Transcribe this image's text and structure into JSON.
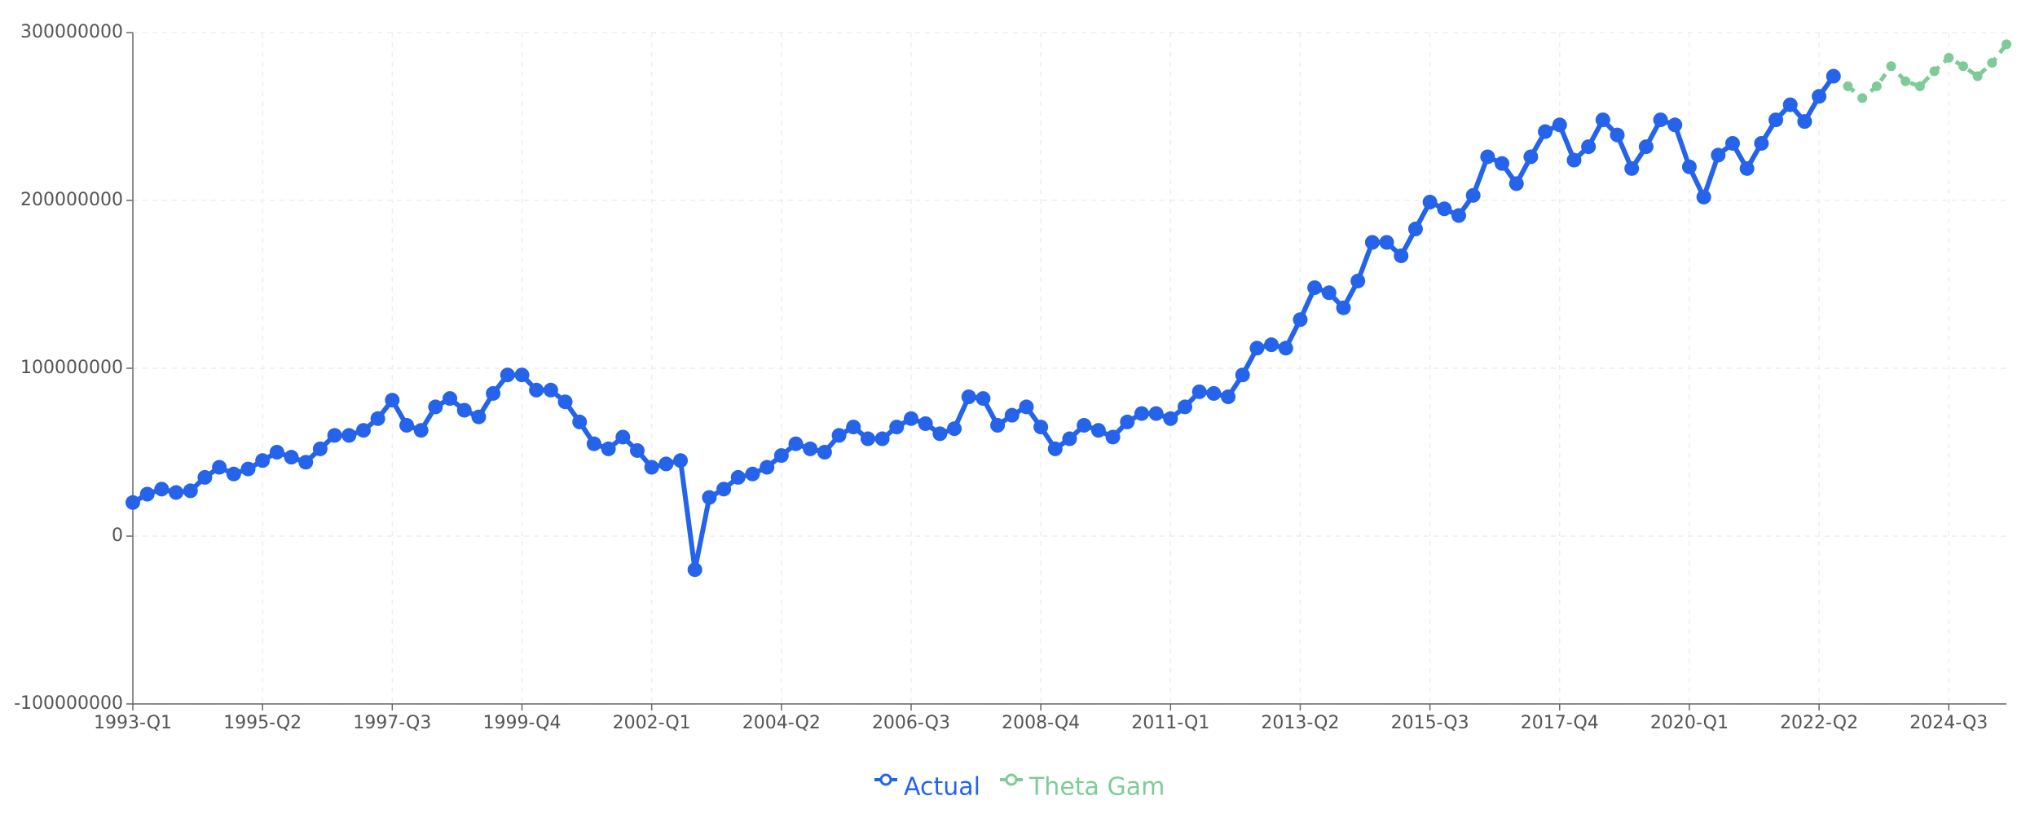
{
  "chart_data": {
    "type": "line",
    "categories": [
      "1993-Q1",
      null,
      null,
      null,
      null,
      null,
      null,
      null,
      null,
      "1995-Q2",
      null,
      null,
      null,
      null,
      null,
      null,
      null,
      null,
      "1997-Q3",
      null,
      null,
      null,
      null,
      null,
      null,
      null,
      null,
      "1999-Q4",
      null,
      null,
      null,
      null,
      null,
      null,
      null,
      null,
      "2002-Q1",
      null,
      null,
      null,
      null,
      null,
      null,
      null,
      null,
      "2004-Q2",
      null,
      null,
      null,
      null,
      null,
      null,
      null,
      null,
      "2006-Q3",
      null,
      null,
      null,
      null,
      null,
      null,
      null,
      null,
      "2008-Q4",
      null,
      null,
      null,
      null,
      null,
      null,
      null,
      null,
      "2011-Q1",
      null,
      null,
      null,
      null,
      null,
      null,
      null,
      null,
      "2013-Q2",
      null,
      null,
      null,
      null,
      null,
      null,
      null,
      null,
      "2015-Q3",
      null,
      null,
      null,
      null,
      null,
      null,
      null,
      null,
      "2017-Q4",
      null,
      null,
      null,
      null,
      null,
      null,
      null,
      null,
      "2020-Q1",
      null,
      null,
      null,
      null,
      null,
      null,
      null,
      null,
      "2022-Q2",
      null,
      null,
      null,
      null,
      null,
      null,
      null,
      null,
      "2024-Q3",
      null,
      null,
      null,
      null
    ],
    "series": [
      {
        "name": "Actual",
        "color": "#2563eb",
        "dashed": false,
        "values": [
          20000000,
          25000000,
          28000000,
          26000000,
          27000000,
          35000000,
          41000000,
          37000000,
          40000000,
          45000000,
          50000000,
          47000000,
          44000000,
          52000000,
          60000000,
          60000000,
          63000000,
          70000000,
          81000000,
          66000000,
          63000000,
          77000000,
          82000000,
          75000000,
          71000000,
          85000000,
          96000000,
          96000000,
          87000000,
          87000000,
          80000000,
          68000000,
          55000000,
          52000000,
          59000000,
          51000000,
          41000000,
          43000000,
          45000000,
          -20000000,
          23000000,
          28000000,
          35000000,
          37000000,
          41000000,
          48000000,
          55000000,
          52000000,
          50000000,
          60000000,
          65000000,
          58000000,
          58000000,
          65000000,
          70000000,
          67000000,
          61000000,
          64000000,
          83000000,
          82000000,
          66000000,
          72000000,
          77000000,
          65000000,
          52000000,
          58000000,
          66000000,
          63000000,
          59000000,
          68000000,
          73000000,
          73000000,
          70000000,
          77000000,
          86000000,
          85000000,
          83000000,
          96000000,
          112000000,
          114000000,
          112000000,
          129000000,
          148000000,
          145000000,
          136000000,
          152000000,
          175000000,
          175000000,
          167000000,
          183000000,
          199000000,
          195000000,
          191000000,
          203000000,
          226000000,
          222000000,
          210000000,
          226000000,
          241000000,
          245000000,
          224000000,
          232000000,
          248000000,
          239000000,
          219000000,
          232000000,
          248000000,
          245000000,
          220000000,
          202000000,
          227000000,
          234000000,
          219000000,
          234000000,
          248000000,
          257000000,
          247000000,
          262000000,
          274000000,
          null,
          null,
          null,
          null,
          null,
          null,
          null,
          null,
          null,
          null,
          null,
          null
        ]
      },
      {
        "name": "Theta Gam",
        "color": "#7fcb98",
        "dashed": true,
        "values": [
          null,
          null,
          null,
          null,
          null,
          null,
          null,
          null,
          null,
          null,
          null,
          null,
          null,
          null,
          null,
          null,
          null,
          null,
          null,
          null,
          null,
          null,
          null,
          null,
          null,
          null,
          null,
          null,
          null,
          null,
          null,
          null,
          null,
          null,
          null,
          null,
          null,
          null,
          null,
          null,
          null,
          null,
          null,
          null,
          null,
          null,
          null,
          null,
          null,
          null,
          null,
          null,
          null,
          null,
          null,
          null,
          null,
          null,
          null,
          null,
          null,
          null,
          null,
          null,
          null,
          null,
          null,
          null,
          null,
          null,
          null,
          null,
          null,
          null,
          null,
          null,
          null,
          null,
          null,
          null,
          null,
          null,
          null,
          null,
          null,
          null,
          null,
          null,
          null,
          null,
          null,
          null,
          null,
          null,
          null,
          null,
          null,
          null,
          null,
          null,
          null,
          null,
          null,
          null,
          null,
          null,
          null,
          null,
          null,
          null,
          null,
          null,
          null,
          null,
          null,
          null,
          null,
          null,
          null,
          268000000,
          261000000,
          268000000,
          280000000,
          271000000,
          268000000,
          277000000,
          285000000,
          280000000,
          274000000,
          282000000,
          293000000
        ]
      }
    ],
    "ylim": [
      -100000000,
      300000000
    ],
    "yticks": [
      -100000000,
      0,
      100000000,
      200000000,
      300000000
    ],
    "grid": true
  }
}
